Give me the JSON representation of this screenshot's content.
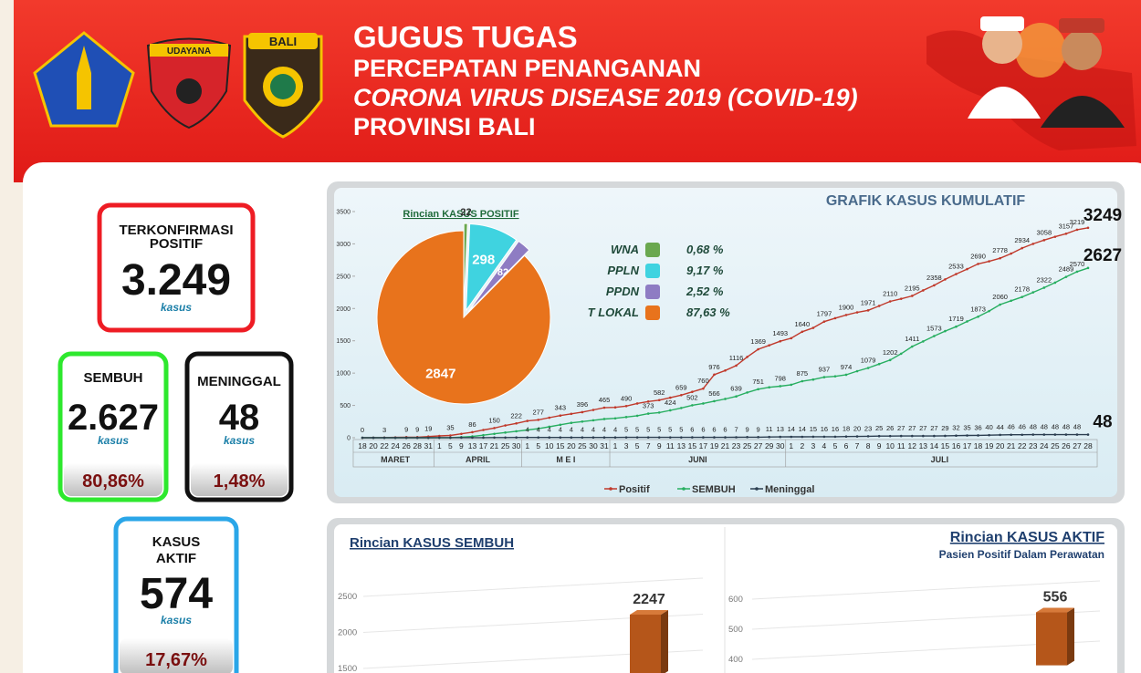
{
  "header": {
    "title": "GUGUS TUGAS",
    "lines": [
      "PERCEPATAN PENANGANAN",
      "CORONA VIRUS DISEASE 2019 (COVID-19)",
      "PROVINSI BALI"
    ],
    "logo_texts": [
      "UDAYANA",
      "BALI"
    ]
  },
  "stats": [
    {
      "label_lines": [
        "TERKONFIRMASI",
        "POSITIF"
      ],
      "value": "3.249",
      "unit": "kasus"
    },
    {
      "label_lines": [
        "SEMBUH"
      ],
      "value": "2.627",
      "unit": "kasus",
      "percent": "80,86%"
    },
    {
      "label_lines": [
        "MENINGGAL"
      ],
      "value": "48",
      "unit": "kasus",
      "percent": "1,48%"
    },
    {
      "label_lines": [
        "KASUS",
        "AKTIF"
      ],
      "value": "574",
      "unit": "kasus",
      "percent": "17,67%"
    }
  ],
  "chart_data": [
    {
      "type": "line",
      "title": "GRAFIK KASUS KUMULATIF",
      "months": [
        {
          "name": "MARET",
          "days": [
            "18",
            "20",
            "22",
            "24",
            "26",
            "28",
            "31"
          ]
        },
        {
          "name": "APRIL",
          "days": [
            "1",
            "5",
            "9",
            "13",
            "17",
            "21",
            "25",
            "30"
          ]
        },
        {
          "name": "M E I",
          "days": [
            "1",
            "5",
            "10",
            "15",
            "20",
            "25",
            "30",
            "31"
          ]
        },
        {
          "name": "JUNI",
          "days": [
            "1",
            "3",
            "5",
            "7",
            "9",
            "11",
            "13",
            "15",
            "17",
            "19",
            "21",
            "23",
            "25",
            "27",
            "29",
            "30"
          ]
        },
        {
          "name": "JULI",
          "days": [
            "1",
            "2",
            "3",
            "4",
            "5",
            "6",
            "7",
            "8",
            "9",
            "10",
            "11",
            "12",
            "13",
            "14",
            "15",
            "16",
            "17",
            "18",
            "19",
            "20",
            "21",
            "22",
            "23",
            "24",
            "25",
            "26",
            "27",
            "28"
          ]
        }
      ],
      "ylim": [
        0,
        3500
      ],
      "yticks": [
        0,
        500,
        1000,
        1500,
        2000,
        2500,
        3000,
        3500
      ],
      "series": [
        {
          "name": "Positif",
          "color": "#c0392b",
          "values": [
            0,
            1,
            3,
            5,
            9,
            9,
            19,
            28,
            35,
            60,
            86,
            120,
            150,
            190,
            222,
            260,
            277,
            310,
            343,
            370,
            396,
            430,
            465,
            470,
            490,
            530,
            560,
            582,
            620,
            659,
            710,
            760,
            976,
            1040,
            1116,
            1250,
            1369,
            1430,
            1493,
            1540,
            1640,
            1700,
            1797,
            1850,
            1900,
            1940,
            1971,
            2040,
            2110,
            2150,
            2195,
            2280,
            2358,
            2450,
            2533,
            2610,
            2690,
            2730,
            2778,
            2850,
            2934,
            3000,
            3058,
            3110,
            3157,
            3219,
            3249
          ],
          "value_labels": [
            "0",
            null,
            "3",
            null,
            "9",
            "9",
            "19",
            null,
            "35",
            null,
            "86",
            null,
            "150",
            null,
            "222",
            null,
            "277",
            null,
            "343",
            null,
            "396",
            null,
            "465",
            null,
            "490",
            null,
            null,
            "582",
            null,
            "659",
            null,
            "760",
            "976",
            null,
            "1116",
            null,
            "1369",
            null,
            "1493",
            null,
            "1640",
            null,
            "1797",
            null,
            "1900",
            null,
            "1971",
            null,
            "2110",
            null,
            "2195",
            null,
            "2358",
            null,
            "2533",
            null,
            "2690",
            null,
            "2778",
            null,
            "2934",
            null,
            "3058",
            null,
            "3157",
            "3219",
            "3249"
          ]
        },
        {
          "name": "SEMBUH",
          "color": "#27ae60",
          "values": [
            0,
            0,
            0,
            0,
            0,
            0,
            0,
            0,
            0,
            10,
            20,
            40,
            60,
            80,
            100,
            120,
            140,
            170,
            200,
            230,
            250,
            270,
            290,
            300,
            320,
            340,
            373,
            390,
            424,
            460,
            502,
            530,
            566,
            600,
            639,
            700,
            751,
            780,
            798,
            820,
            875,
            900,
            937,
            950,
            974,
            1030,
            1079,
            1140,
            1202,
            1300,
            1411,
            1490,
            1573,
            1650,
            1719,
            1800,
            1873,
            1960,
            2060,
            2120,
            2178,
            2250,
            2322,
            2400,
            2489,
            2570,
            2627
          ],
          "value_labels": [
            null,
            null,
            null,
            null,
            null,
            null,
            null,
            null,
            null,
            null,
            null,
            null,
            null,
            null,
            null,
            null,
            null,
            null,
            null,
            null,
            null,
            null,
            null,
            null,
            null,
            null,
            "373",
            null,
            "424",
            null,
            "502",
            null,
            "566",
            null,
            "639",
            null,
            "751",
            null,
            "798",
            null,
            "875",
            null,
            "937",
            null,
            "974",
            null,
            "1079",
            null,
            "1202",
            null,
            "1411",
            null,
            "1573",
            null,
            "1719",
            null,
            "1873",
            null,
            "2060",
            null,
            "2178",
            null,
            "2322",
            null,
            "2489",
            "2570",
            "2627"
          ]
        },
        {
          "name": "Meninggal",
          "color": "#2c3e50",
          "values": [
            0,
            0,
            0,
            0,
            0,
            0,
            0,
            1,
            1,
            2,
            2,
            2,
            3,
            3,
            4,
            4,
            4,
            4,
            4,
            4,
            4,
            4,
            4,
            4,
            5,
            5,
            5,
            5,
            5,
            5,
            6,
            6,
            6,
            6,
            7,
            9,
            9,
            11,
            13,
            14,
            14,
            15,
            16,
            16,
            18,
            20,
            23,
            25,
            26,
            27,
            27,
            27,
            27,
            29,
            32,
            35,
            36,
            40,
            44,
            46,
            46,
            48,
            48,
            48,
            48,
            48,
            48
          ],
          "value_labels": [
            null,
            null,
            null,
            null,
            null,
            null,
            null,
            null,
            null,
            null,
            null,
            null,
            null,
            null,
            null,
            "4",
            "4",
            "4",
            "4",
            "4",
            "4",
            "4",
            "4",
            "4",
            "5",
            "5",
            "5",
            "5",
            "5",
            "5",
            "6",
            "6",
            "6",
            "6",
            "7",
            "9",
            "9",
            "11",
            "13",
            "14",
            "14",
            "15",
            "16",
            "16",
            "18",
            "20",
            "23",
            "25",
            "26",
            "27",
            "27",
            "27",
            "27",
            "29",
            "32",
            "35",
            "36",
            "40",
            "44",
            "46",
            "46",
            "48",
            "48",
            "48",
            "48",
            "48",
            "48"
          ]
        }
      ]
    },
    {
      "type": "pie",
      "title": "Rincian KASUS POSITIF",
      "categories": [
        "WNA",
        "PPLN",
        "PPDN",
        "T LOKAL"
      ],
      "values": [
        22,
        298,
        82,
        2847
      ],
      "percent_labels": [
        "0,68 %",
        "9,17 %",
        "2,52 %",
        "87,63 %"
      ],
      "colors": [
        "#6aa84f",
        "#3fd3e0",
        "#8e7cc3",
        "#e8731c"
      ]
    },
    {
      "type": "bar",
      "title": "Rincian KASUS SEMBUH",
      "values": [
        2247
      ],
      "color": "#b5561a",
      "ylim": [
        1400,
        2600
      ],
      "yticks": [
        1500,
        2000,
        2500
      ]
    },
    {
      "type": "bar",
      "title": "Rincian KASUS AKTIF",
      "subtitle": "Pasien Positif Dalam Perawatan",
      "values": [
        556
      ],
      "color": "#b5561a",
      "ylim": [
        380,
        620
      ],
      "yticks": [
        400,
        500,
        600
      ]
    }
  ]
}
